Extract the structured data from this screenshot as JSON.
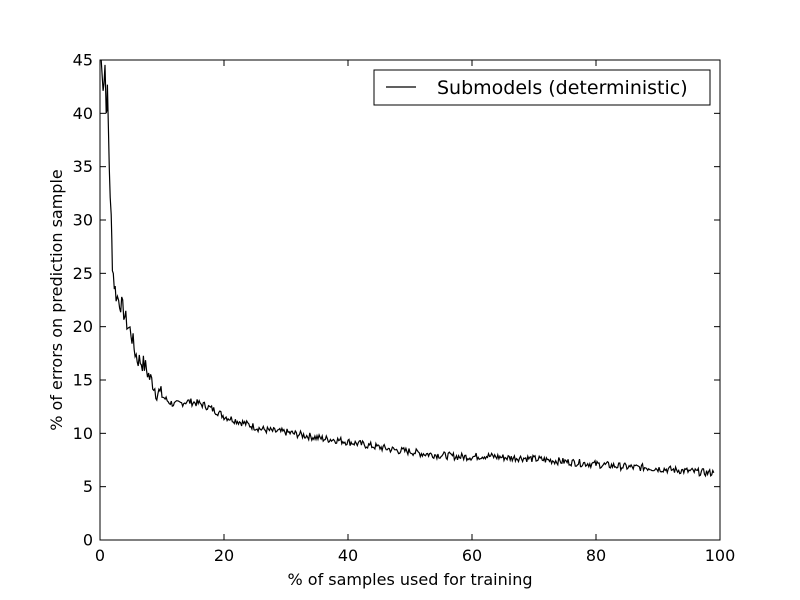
{
  "chart_data": {
    "type": "line",
    "xlabel": "% of samples used for training",
    "ylabel": "% of errors on prediction sample",
    "xlim": [
      0,
      100
    ],
    "ylim": [
      0,
      45
    ],
    "xticks": [
      0,
      20,
      40,
      60,
      80,
      100
    ],
    "yticks": [
      0,
      5,
      10,
      15,
      20,
      25,
      30,
      35,
      40,
      45
    ],
    "grid": false,
    "legend": {
      "placement": "top-right"
    },
    "series": [
      {
        "name": "Submodels (deterministic)",
        "color": "#000000",
        "x": [
          0.2,
          0.5,
          0.8,
          1.0,
          1.2,
          1.5,
          1.8,
          2.0,
          2.3,
          2.6,
          3.0,
          3.5,
          4.0,
          4.5,
          5.0,
          5.5,
          6.0,
          6.5,
          7.0,
          7.5,
          8.0,
          8.5,
          9.0,
          9.5,
          10,
          11,
          12,
          13,
          14,
          15,
          16,
          17,
          18,
          19,
          20,
          22,
          24,
          26,
          28,
          30,
          32,
          34,
          36,
          38,
          40,
          42,
          44,
          46,
          48,
          50,
          52,
          54,
          56,
          58,
          60,
          62,
          64,
          66,
          68,
          70,
          72,
          74,
          76,
          78,
          80,
          82,
          84,
          86,
          88,
          90,
          92,
          94,
          96,
          98,
          99
        ],
        "values": [
          45,
          42,
          45,
          40,
          42,
          35,
          30,
          26,
          24,
          23,
          22.5,
          22,
          21,
          20,
          19.5,
          18,
          17,
          16.8,
          16.5,
          16,
          15.2,
          14.8,
          14,
          13.8,
          13.5,
          13,
          12.7,
          12.8,
          13,
          12.9,
          12.8,
          12.6,
          12.3,
          12,
          11.6,
          11.2,
          10.8,
          10.4,
          10.2,
          10.1,
          9.9,
          9.7,
          9.5,
          9.4,
          9.2,
          9.0,
          8.8,
          8.6,
          8.4,
          8.3,
          8.1,
          8.0,
          7.9,
          7.8,
          7.8,
          7.9,
          7.8,
          7.7,
          7.7,
          7.6,
          7.5,
          7.4,
          7.3,
          7.2,
          7.1,
          7.0,
          6.9,
          6.8,
          6.8,
          6.7,
          6.6,
          6.5,
          6.4,
          6.3,
          6.3
        ]
      }
    ]
  }
}
